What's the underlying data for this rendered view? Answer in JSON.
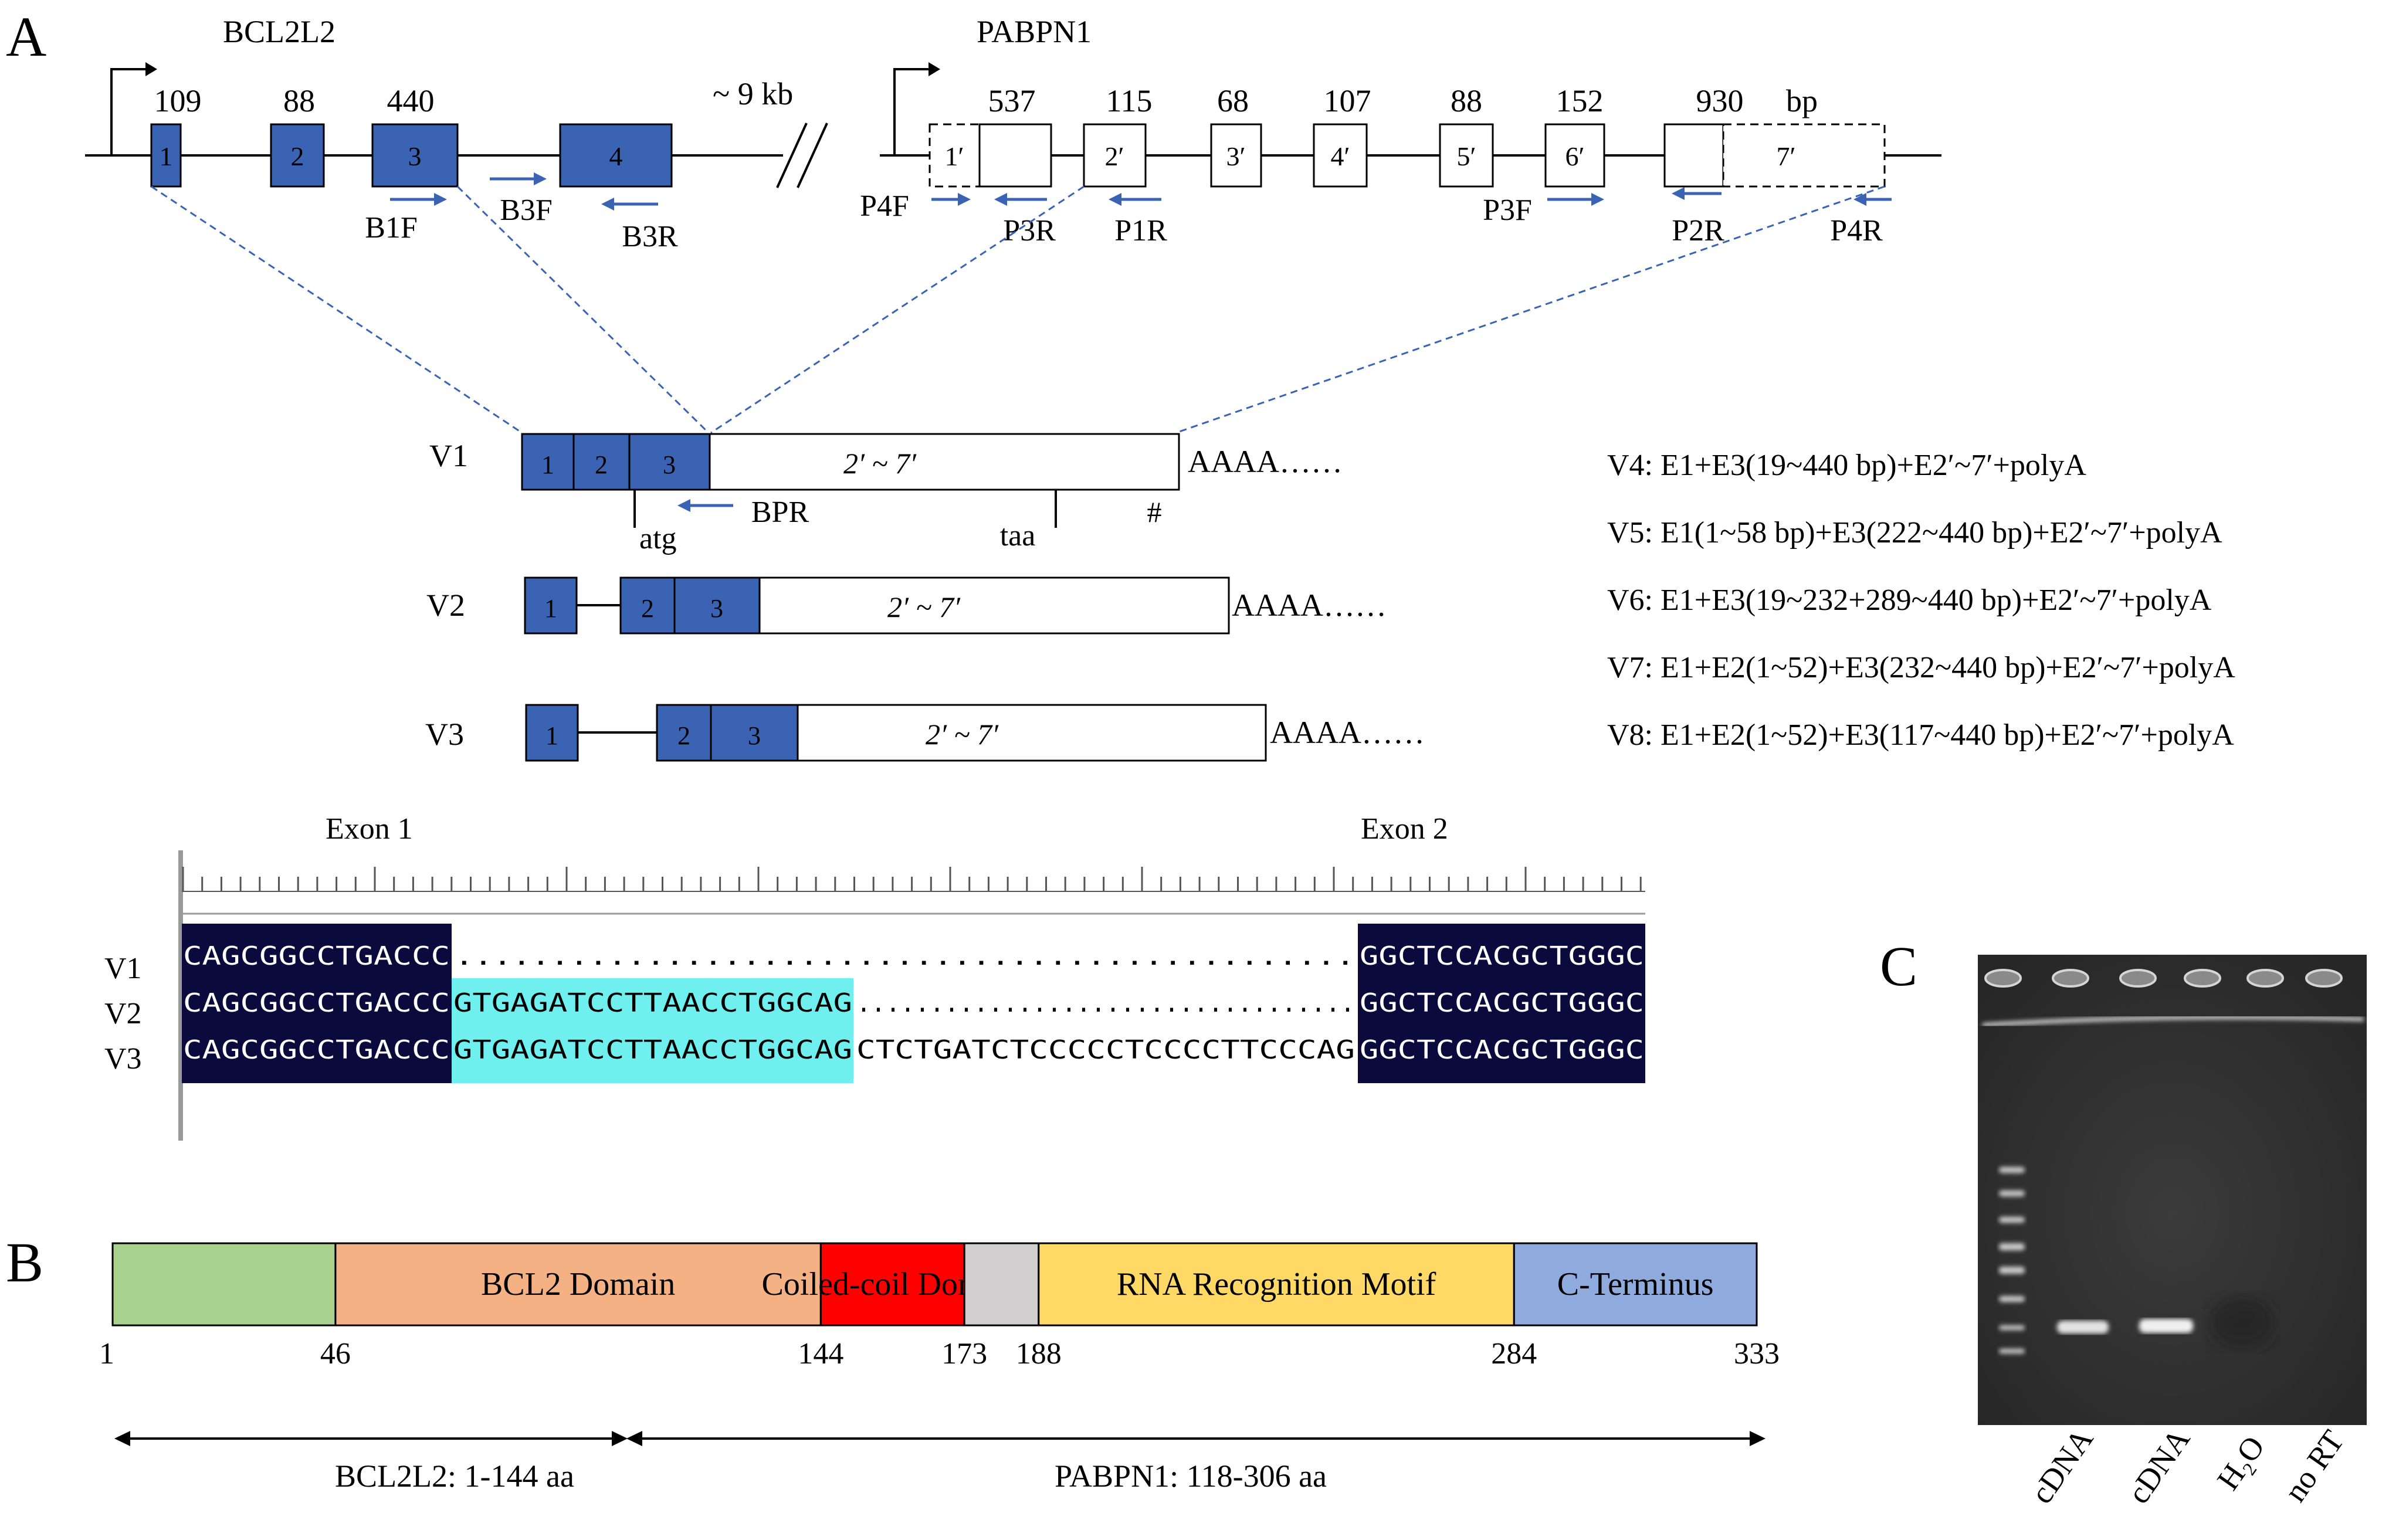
{
  "panels": {
    "a": "A",
    "b": "B",
    "c": "C"
  },
  "colors": {
    "blue_exon": "#3a64b3",
    "cyan_highlight": "#6ff0ef",
    "navy_block": "#0a0a3c",
    "gel_bg": "#303030"
  },
  "gene_map": {
    "gene1": "BCL2L2",
    "gene2": "PABPN1",
    "gap_label": "~ 9 kb",
    "bp_unit": "bp",
    "bcl_exons": [
      {
        "label": "1",
        "size": "109"
      },
      {
        "label": "2",
        "size": "88"
      },
      {
        "label": "3",
        "size": "440"
      },
      {
        "label": "4",
        "size": ""
      }
    ],
    "pab_exons": [
      {
        "label": "1′",
        "size": ""
      },
      {
        "label": "",
        "size": "537"
      },
      {
        "label": "2′",
        "size": "115"
      },
      {
        "label": "3′",
        "size": "68"
      },
      {
        "label": "4′",
        "size": "107"
      },
      {
        "label": "5′",
        "size": "88"
      },
      {
        "label": "6′",
        "size": "152"
      },
      {
        "label": "7′",
        "size": "930"
      }
    ],
    "primers": [
      "B1F",
      "B3F",
      "B3R",
      "P4F",
      "P3R",
      "P1R",
      "P3F",
      "P2R",
      "P4R"
    ]
  },
  "transcripts": {
    "v1": {
      "name": "V1",
      "body": "2′ ~ 7′",
      "tail": "AAAA……",
      "exons": [
        "1",
        "2",
        "3"
      ],
      "atg": "atg",
      "taa": "taa",
      "primer": "BPR",
      "hash": "#"
    },
    "v2": {
      "name": "V2",
      "body": "2′ ~ 7′",
      "tail": "AAAA……",
      "exons": [
        "1",
        "2",
        "3"
      ]
    },
    "v3": {
      "name": "V3",
      "body": "2′ ~ 7′",
      "tail": "AAAA……",
      "exons": [
        "1",
        "2",
        "3"
      ]
    }
  },
  "variant_notes": [
    "V4:  E1+E3(19~440 bp)+E2′~7′+polyA",
    "V5:  E1(1~58 bp)+E3(222~440 bp)+E2′~7′+polyA",
    "V6:  E1+E3(19~232+289~440 bp)+E2′~7′+polyA",
    "V7:  E1+E2(1~52)+E3(232~440 bp)+E2′~7′+polyA",
    "V8:  E1+E2(1~52)+E3(117~440 bp)+E2′~7′+polyA"
  ],
  "alignment": {
    "exon1_label": "Exon 1",
    "exon2_label": "Exon 2",
    "rows": [
      {
        "name": "V1",
        "exon1": "CAGCGGCCTGACCC",
        "insert": "",
        "gap": "...............................................",
        "exon2": "GGCTCCACGCTGGGC"
      },
      {
        "name": "V2",
        "exon1": "CAGCGGCCTGACCC",
        "insert": "GTGAGATCCTTAACCTGGCAG",
        "gap": "..................................",
        "exon2": "GGCTCCACGCTGGGC"
      },
      {
        "name": "V3",
        "exon1": "CAGCGGCCTGACCC",
        "insert": "GTGAGATCCTTAACCTGGCAG",
        "gap": "CTCTGATCTCCCCCTCCCCTTCCCAG",
        "exon2": "GGCTCCACGCTGGGC"
      }
    ]
  },
  "protein": {
    "domains": [
      {
        "label": "",
        "start": 1,
        "end": 46,
        "color": "#a8d18d"
      },
      {
        "label": "BCL2 Domain",
        "start": 46,
        "end": 144,
        "color": "#f4b183"
      },
      {
        "label": "Coiled-coil Domain",
        "start": 144,
        "end": 173,
        "color": "#ff0000"
      },
      {
        "label": "",
        "start": 173,
        "end": 188,
        "color": "#d0cece"
      },
      {
        "label": "RNA Recognition Motif",
        "start": 188,
        "end": 284,
        "color": "#ffd966"
      },
      {
        "label": "C-Terminus",
        "start": 284,
        "end": 333,
        "color": "#8faadc"
      }
    ],
    "ticks": [
      "1",
      "46",
      "144",
      "173",
      "188",
      "284",
      "333"
    ],
    "span1": "BCL2L2: 1-144 aa",
    "span2": "PABPN1: 118-306 aa"
  },
  "gel": {
    "lanes": [
      "cDNA",
      "cDNA",
      "H₂O",
      "no RT"
    ],
    "band_lanes": [
      "cDNA",
      "cDNA"
    ]
  }
}
